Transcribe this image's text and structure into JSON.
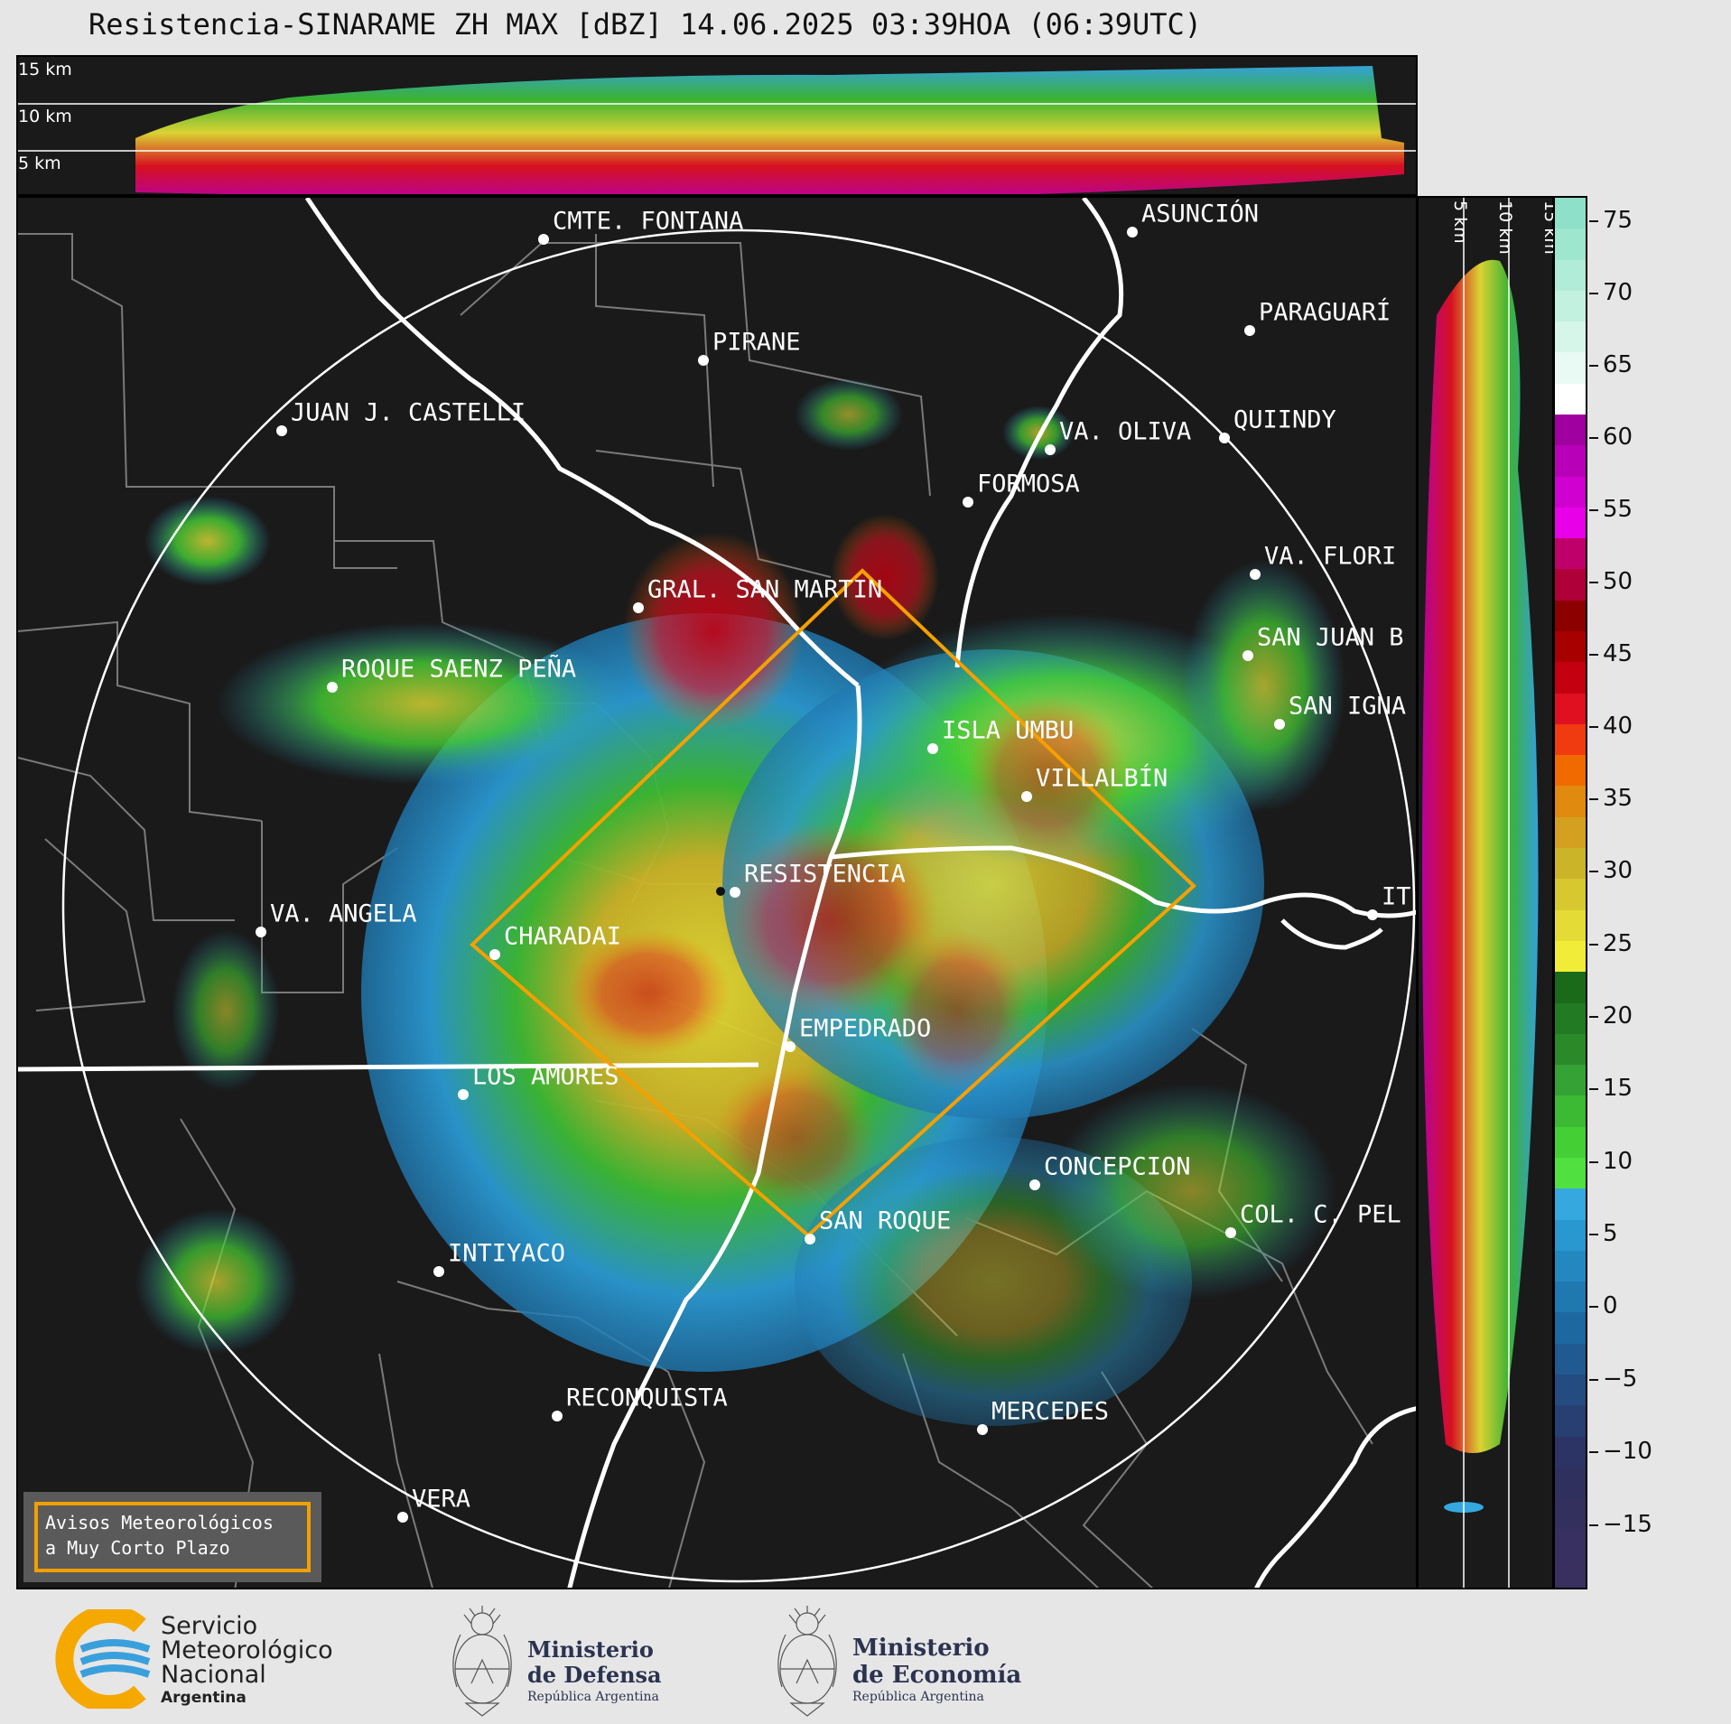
{
  "header": {
    "title": "Resistencia-SINARAME ZH MAX [dBZ] 14.06.2025 03:39HOA (06:39UTC)"
  },
  "top_panel": {
    "altitudes": [
      "15 km",
      "10 km",
      "5 km"
    ]
  },
  "side_panel": {
    "altitudes": [
      "5 km",
      "10 km",
      "15 km"
    ]
  },
  "colorbar": {
    "ticks": [
      "75",
      "70",
      "65",
      "60",
      "55",
      "50",
      "45",
      "40",
      "35",
      "30",
      "25",
      "20",
      "15",
      "10",
      "5",
      "0",
      "−5",
      "−10",
      "−15"
    ],
    "colors": [
      "#8fe0c8",
      "#9fe6cf",
      "#b1ecd8",
      "#c3f1e0",
      "#d6f6ea",
      "#e8faf3",
      "#ffffff",
      "#a000a0",
      "#b800b8",
      "#d000d0",
      "#e800e8",
      "#c0006a",
      "#b0003a",
      "#8c0000",
      "#a80000",
      "#c40010",
      "#e01020",
      "#f03a10",
      "#f06a00",
      "#e08a10",
      "#d4a020",
      "#ccb428",
      "#d8c830",
      "#e4dc34",
      "#f0ec38",
      "#1a6a1a",
      "#227a22",
      "#2a8a2a",
      "#34a234",
      "#3cba34",
      "#44d034",
      "#50e040",
      "#36a8e0",
      "#2a98d0",
      "#2488c0",
      "#2078b0",
      "#1c68a0",
      "#205a90",
      "#244c80",
      "#283f72",
      "#2c3466",
      "#30305e",
      "#34305e",
      "#383060",
      "#3a3060"
    ]
  },
  "cities": [
    {
      "name": "CMTE. FONTANA"
    },
    {
      "name": "ASUNCIÓN"
    },
    {
      "name": "PARAGUARÍ"
    },
    {
      "name": "PIRANE"
    },
    {
      "name": "JUAN J. CASTELLI"
    },
    {
      "name": "VA. OLIVA"
    },
    {
      "name": "QUIINDY"
    },
    {
      "name": "FORMOSA"
    },
    {
      "name": "VA. FLORI"
    },
    {
      "name": "GRAL. SAN MARTIN"
    },
    {
      "name": "SAN JUAN B"
    },
    {
      "name": "ROQUE SAENZ PEÑA"
    },
    {
      "name": "SAN IGNA"
    },
    {
      "name": "ISLA UMBU"
    },
    {
      "name": "VILLALBÍN"
    },
    {
      "name": "RESISTENCIA"
    },
    {
      "name": "VA. ANGELA"
    },
    {
      "name": "CHARADAI"
    },
    {
      "name": "IT"
    },
    {
      "name": "EMPEDRADO"
    },
    {
      "name": "LOS AMORES"
    },
    {
      "name": "CONCEPCION"
    },
    {
      "name": "SAN ROQUE"
    },
    {
      "name": "COL. C. PEL"
    },
    {
      "name": "INTIYACO"
    },
    {
      "name": "RECONQUISTA"
    },
    {
      "name": "MERCEDES"
    },
    {
      "name": "VERA"
    }
  ],
  "legend": {
    "line1": "Avisos Meteorológicos",
    "line2": "a Muy Corto Plazo"
  },
  "footer": {
    "smn": [
      "Servicio",
      "Meteorológico",
      "Nacional",
      "Argentina"
    ],
    "defensa": [
      "Ministerio",
      "de Defensa",
      "República Argentina"
    ],
    "economia": [
      "Ministerio",
      "de Economía",
      "República Argentina"
    ]
  }
}
